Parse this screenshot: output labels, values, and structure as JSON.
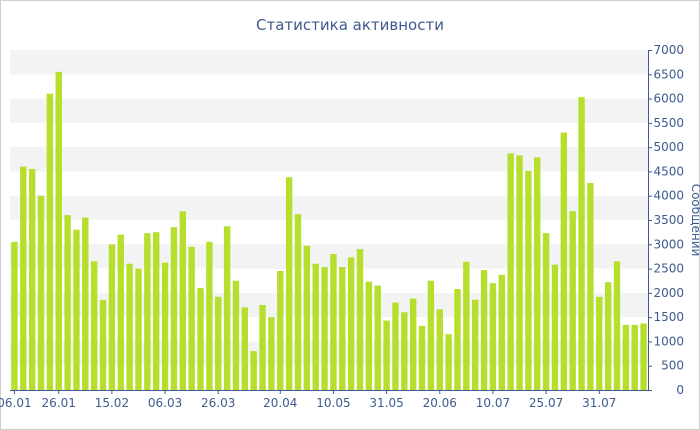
{
  "chart_data": {
    "type": "bar",
    "title": "Статистика активности",
    "ylabel": "Сообщений",
    "ylim": [
      0,
      7000
    ],
    "y_ticks": [
      0,
      500,
      1000,
      1500,
      2000,
      2500,
      3000,
      3500,
      4000,
      4500,
      5000,
      5500,
      6000,
      6500,
      7000
    ],
    "x_tick_labels": [
      {
        "label": "06.01",
        "index": 0
      },
      {
        "label": "26.01",
        "index": 5
      },
      {
        "label": "15.02",
        "index": 11
      },
      {
        "label": "06.03",
        "index": 17
      },
      {
        "label": "26.03",
        "index": 23
      },
      {
        "label": "20.04",
        "index": 30
      },
      {
        "label": "10.05",
        "index": 36
      },
      {
        "label": "31.05",
        "index": 42
      },
      {
        "label": "20.06",
        "index": 48
      },
      {
        "label": "10.07",
        "index": 54
      },
      {
        "label": "25.07",
        "index": 60
      },
      {
        "label": "31.07",
        "index": 66
      }
    ],
    "values": [
      3050,
      4600,
      4550,
      4000,
      6100,
      6550,
      3600,
      3300,
      3550,
      2650,
      1850,
      3000,
      3200,
      2600,
      2500,
      3230,
      3250,
      2620,
      3350,
      3680,
      2950,
      2100,
      3050,
      1920,
      3370,
      2250,
      1700,
      800,
      1750,
      1500,
      2450,
      4380,
      3620,
      2970,
      2600,
      2530,
      2800,
      2530,
      2730,
      2900,
      2230,
      2150,
      1430,
      1800,
      1600,
      1880,
      1320,
      2250,
      1660,
      1150,
      2080,
      2640,
      1860,
      2470,
      2200,
      2370,
      4870,
      4830,
      4510,
      4790,
      3230,
      2580,
      5300,
      3680,
      6030,
      4260,
      1920,
      2220,
      2650,
      1340,
      1340,
      1370
    ],
    "bar_color": "#b6de2c",
    "band_color": "#f3f3f3",
    "text_color": "#3e5a8e",
    "grid": "alternating horizontal bands",
    "y_axis_position": "right"
  }
}
